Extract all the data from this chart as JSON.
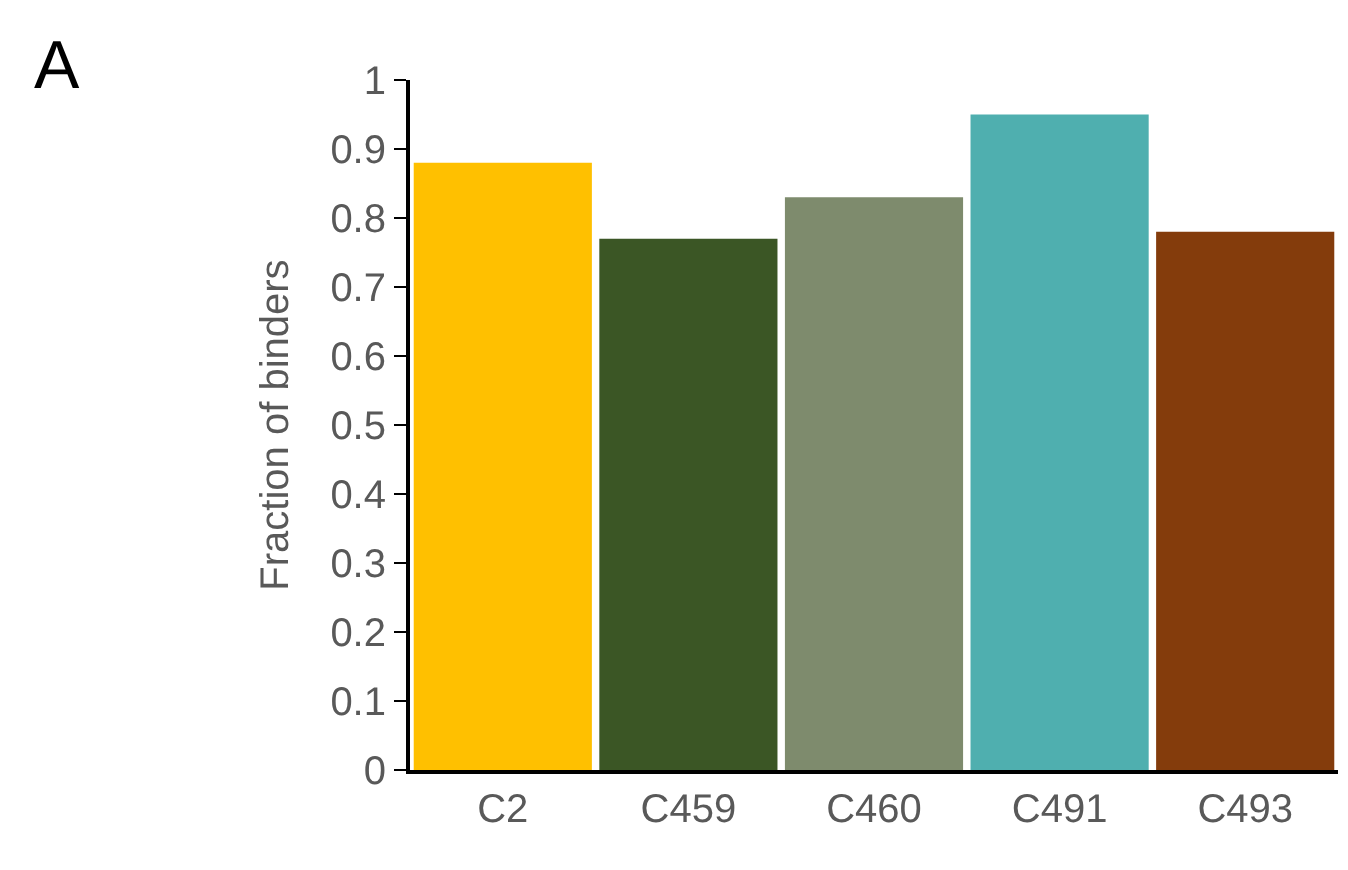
{
  "chart_data": {
    "type": "bar",
    "ylabel": "Fraction of binders",
    "categories": [
      "C2",
      "C459",
      "C460",
      "C491",
      "C493"
    ],
    "values": [
      0.88,
      0.77,
      0.83,
      0.95,
      0.78
    ],
    "colors": [
      "#ffc000",
      "#3b5625",
      "#7e8b6d",
      "#4fafaf",
      "#843c0c"
    ],
    "ylim": [
      0,
      1
    ],
    "yticks": [
      0,
      0.1,
      0.2,
      0.3,
      0.4,
      0.5,
      0.6,
      0.7,
      0.8,
      0.9,
      1
    ],
    "annotations": [
      "A"
    ]
  }
}
